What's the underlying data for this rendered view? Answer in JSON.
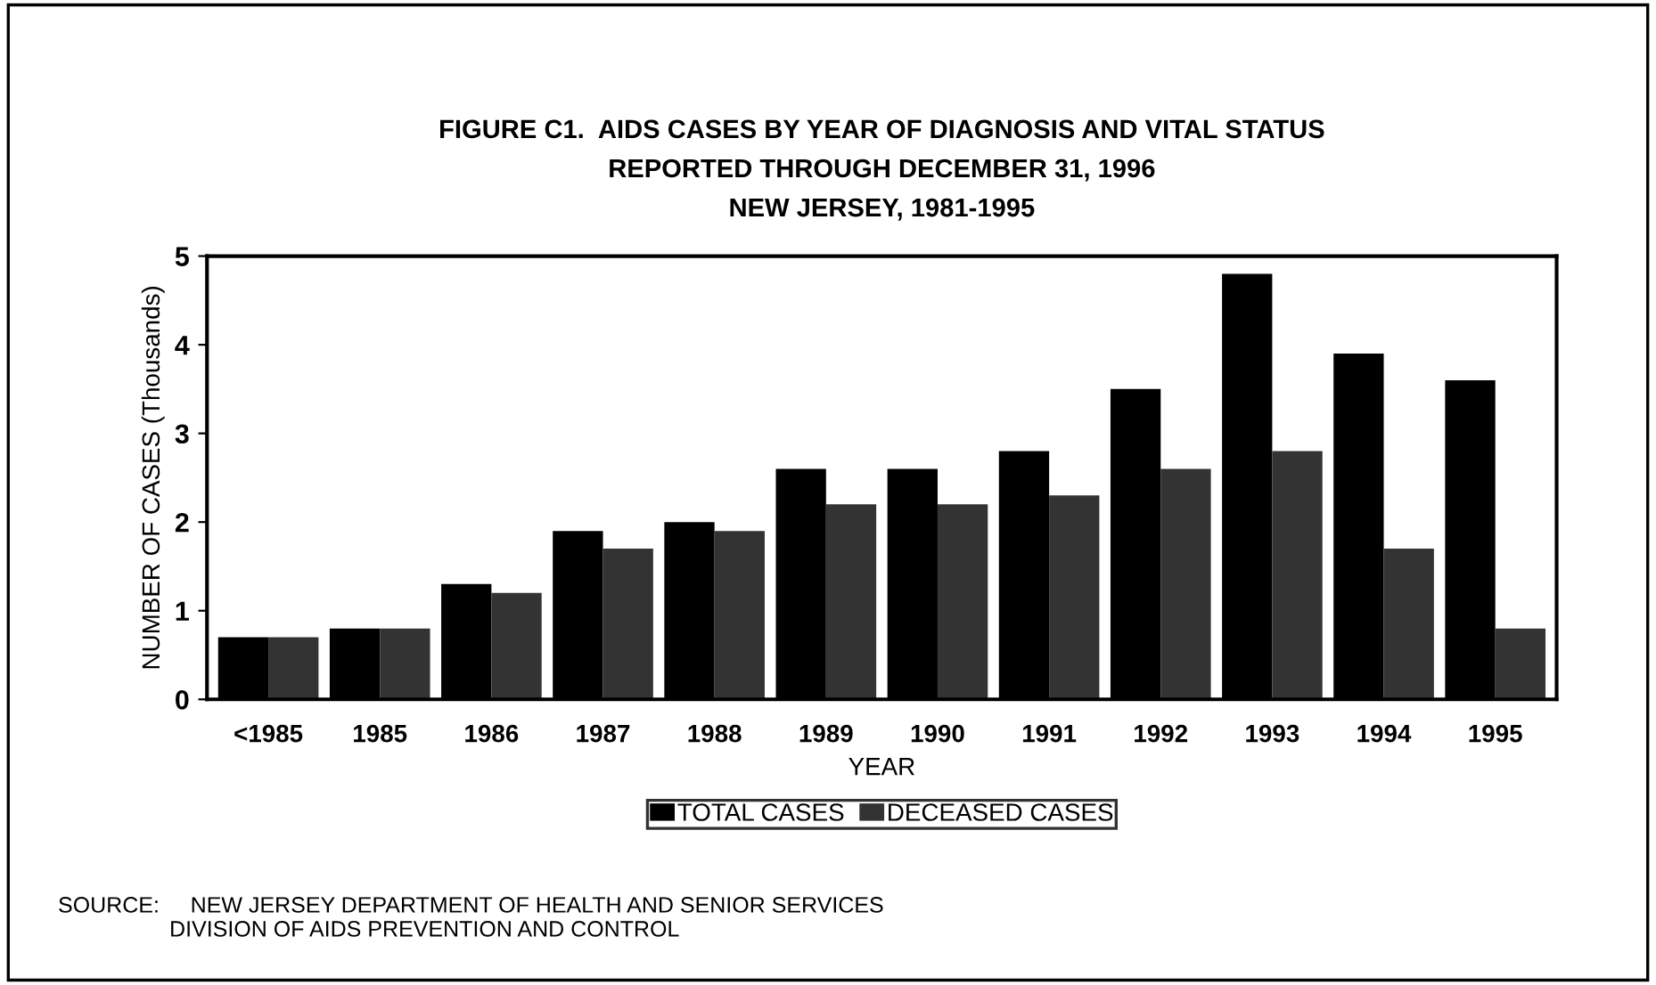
{
  "chart_data": {
    "type": "bar",
    "title": "FIGURE C1.  AIDS CASES BY YEAR OF DIAGNOSIS AND VITAL STATUS\nREPORTED THROUGH DECEMBER 31, 1996\nNEW JERSEY, 1981-1995",
    "xlabel": "YEAR",
    "ylabel": "NUMBER OF CASES (Thousands)",
    "categories": [
      "<1985",
      "1985",
      "1986",
      "1987",
      "1988",
      "1989",
      "1990",
      "1991",
      "1992",
      "1993",
      "1994",
      "1995"
    ],
    "series": [
      {
        "name": "TOTAL CASES",
        "color": "#000000",
        "values": [
          0.7,
          0.8,
          1.3,
          1.9,
          2.0,
          2.6,
          2.6,
          2.8,
          3.5,
          4.8,
          3.9,
          3.6
        ]
      },
      {
        "name": "DECEASED CASES",
        "color": "#333333",
        "values": [
          0.7,
          0.8,
          1.2,
          1.7,
          1.9,
          2.2,
          2.2,
          2.3,
          2.6,
          2.8,
          1.7,
          0.8
        ]
      }
    ],
    "ylim": [
      0,
      5
    ],
    "yticks": [
      0,
      1,
      2,
      3,
      4,
      5
    ],
    "grid": false,
    "legend": "bottom",
    "annotations": [
      "SOURCE:     NEW JERSEY DEPARTMENT OF HEALTH AND SENIOR SERVICES\n                  DIVISION OF AIDS PREVENTION AND CONTROL"
    ]
  }
}
